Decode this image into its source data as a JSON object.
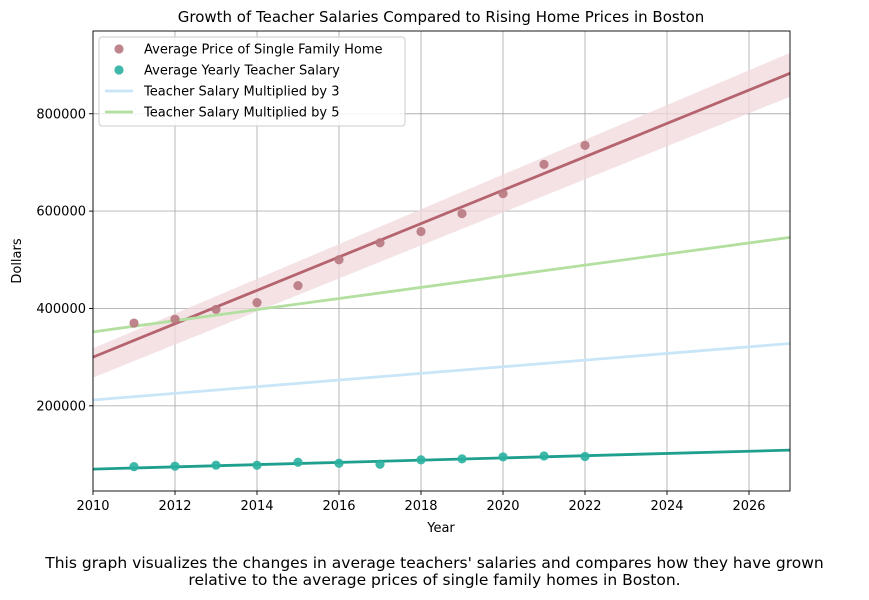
{
  "chart_data": {
    "type": "scatter",
    "title": "Growth of Teacher Salaries Compared to Rising Home Prices in Boston",
    "xlabel": "Year",
    "ylabel": "Dollars",
    "xlim": [
      2010,
      2027
    ],
    "ylim": [
      25000,
      970000
    ],
    "x_ticks": [
      "2010",
      "2012",
      "2014",
      "2016",
      "2018",
      "2020",
      "2022",
      "2024",
      "2026"
    ],
    "y_ticks": [
      "200000",
      "400000",
      "600000",
      "800000"
    ],
    "grid": true,
    "legend_position": "top-left",
    "series": [
      {
        "name": "Average Price of Single Family Home",
        "kind": "scatter-with-regression",
        "color": "#b87880",
        "line_color": "#b5646f",
        "band_color": "#f0d8dc",
        "x": [
          2011,
          2012,
          2013,
          2014,
          2015,
          2016,
          2017,
          2018,
          2019,
          2020,
          2021,
          2022
        ],
        "y": [
          370000,
          378000,
          398000,
          412000,
          447000,
          500000,
          535000,
          558000,
          595000,
          636000,
          696000,
          735000
        ],
        "trend": {
          "x": [
            2010,
            2027
          ],
          "y": [
            300000,
            883000
          ]
        },
        "band_upper": {
          "x": [
            2010,
            2027
          ],
          "y": [
            318000,
            925000
          ]
        },
        "band_lower": {
          "x": [
            2010,
            2027
          ],
          "y": [
            258000,
            835000
          ]
        }
      },
      {
        "name": "Average Yearly Teacher Salary",
        "kind": "scatter-with-regression",
        "color": "#2ab0a0",
        "line_color": "#1fa08f",
        "x": [
          2011,
          2012,
          2013,
          2014,
          2015,
          2016,
          2017,
          2018,
          2019,
          2020,
          2021,
          2022
        ],
        "y": [
          75000,
          76000,
          78000,
          78000,
          84000,
          82000,
          80000,
          89000,
          91000,
          95000,
          97000,
          96000
        ],
        "trend": {
          "x": [
            2010,
            2027
          ],
          "y": [
            70000,
            109000
          ]
        }
      },
      {
        "name": "Teacher Salary Multiplied by 3",
        "kind": "line",
        "color": "#c8e6f8",
        "trend": {
          "x": [
            2010,
            2027
          ],
          "y": [
            212000,
            328000
          ]
        }
      },
      {
        "name": "Teacher Salary Multiplied by 5",
        "kind": "line",
        "color": "#b3e0a0",
        "trend": {
          "x": [
            2010,
            2027
          ],
          "y": [
            352000,
            546000
          ]
        }
      }
    ]
  },
  "caption": {
    "line1": "This graph visualizes the changes in average teachers' salaries and compares how they have grown",
    "line2": "relative to the average prices of single family homes in Boston."
  }
}
